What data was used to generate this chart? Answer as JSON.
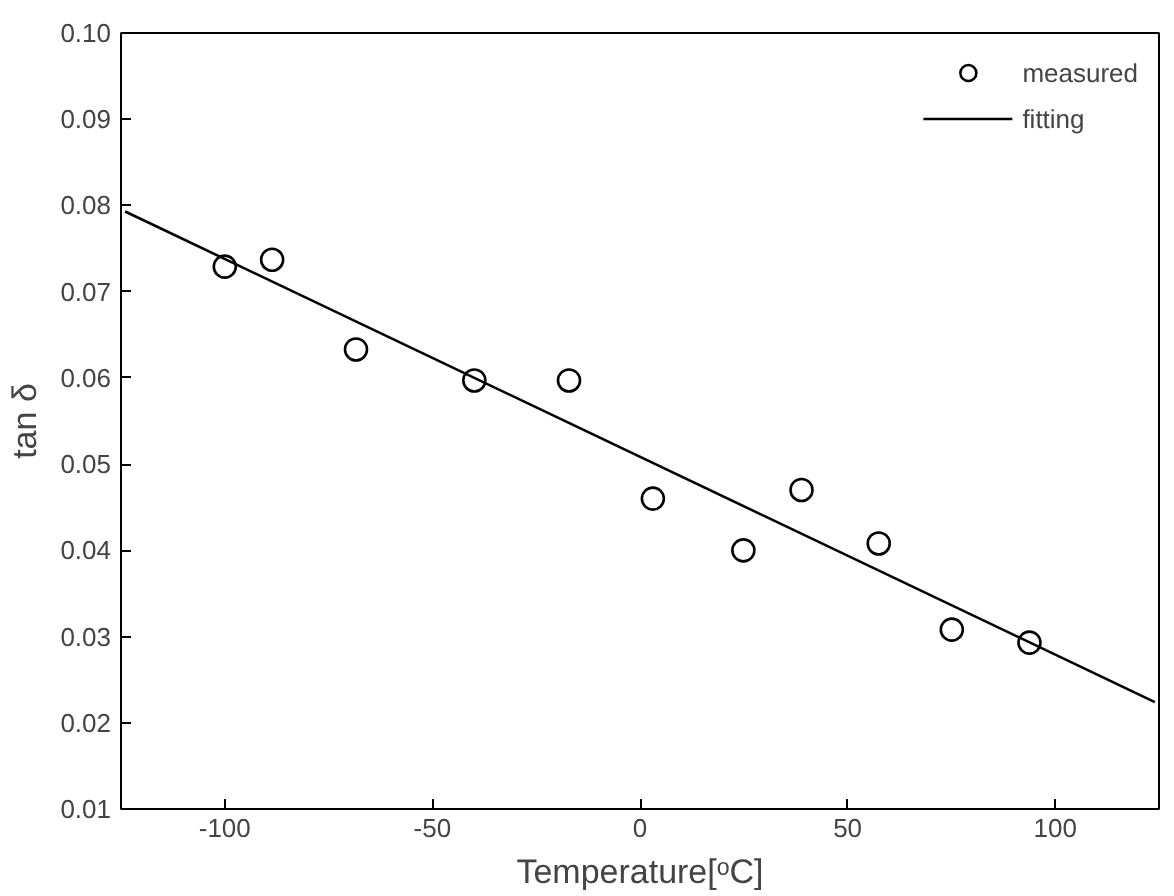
{
  "chart_data": {
    "type": "scatter",
    "xlabel": "Temperature[ᵒC]",
    "ylabel": "tan δ",
    "xlim": [
      -125,
      125
    ],
    "ylim": [
      0.01,
      0.1
    ],
    "xticks": [
      -100,
      -50,
      0,
      50,
      100
    ],
    "yticks": [
      {
        "value": 0.01,
        "label": "0.01"
      },
      {
        "value": 0.02,
        "label": "0.02"
      },
      {
        "value": 0.03,
        "label": "0.03"
      },
      {
        "value": 0.04,
        "label": "0.04"
      },
      {
        "value": 0.05,
        "label": "0.05"
      },
      {
        "value": 0.06,
        "label": "0.06"
      },
      {
        "value": 0.07,
        "label": "0.07"
      },
      {
        "value": 0.08,
        "label": "0.08"
      },
      {
        "value": 0.09,
        "label": "0.09"
      },
      {
        "value": 0.1,
        "label": "0.10"
      }
    ],
    "marker": "circle",
    "legend": "top right",
    "grid": false,
    "series": [
      {
        "name": "measured",
        "color": "#000000",
        "x": [
          -100,
          -88.6,
          -68.4,
          -39.9,
          -17.1,
          3.1,
          24.9,
          38.9,
          57.5,
          75.1,
          93.8
        ],
        "values": [
          0.0729,
          0.0737,
          0.0633,
          0.0597,
          0.0597,
          0.046,
          0.04,
          0.047,
          0.0408,
          0.0308,
          0.0293
        ]
      },
      {
        "name": "fitting",
        "type": "line",
        "marker": "none",
        "color": "#000000",
        "x": [
          -124,
          124
        ],
        "values": [
          0.0793,
          0.0224
        ]
      }
    ]
  }
}
